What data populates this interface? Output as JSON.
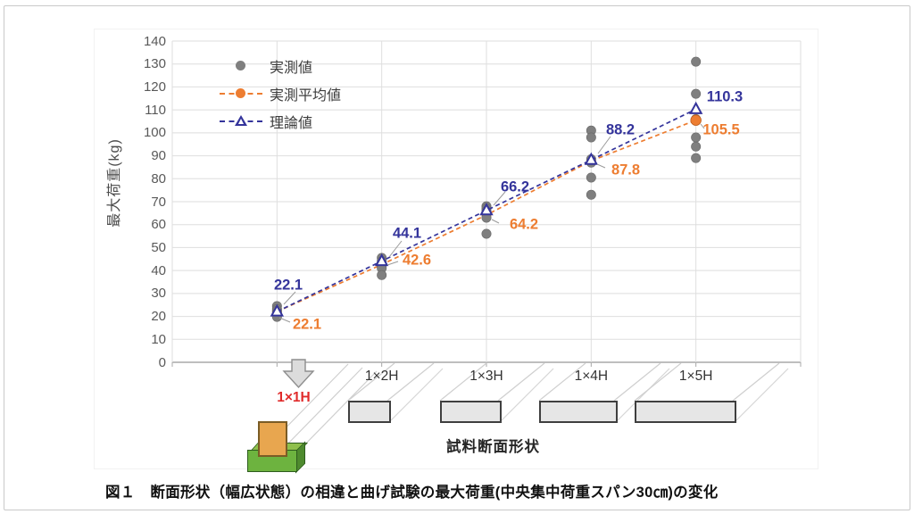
{
  "figure": {
    "caption": "図１　断面形状（幅広状態）の相違と曲げ試験の最大荷重(中央集中荷重スパン30㎝)の変化"
  },
  "chart_data": {
    "type": "scatter",
    "title": "",
    "categories": [
      "1×1H",
      "1×2H",
      "1×3H",
      "1×4H",
      "1×5H"
    ],
    "xlabel": "試料断面形状",
    "ylabel": "最大荷重(kg)",
    "ylim": [
      0,
      140
    ],
    "ytick_step": 10,
    "grid": true,
    "legend_position": "inside-top-left",
    "series": [
      {
        "name": "実測値",
        "type": "scatter",
        "marker": "filled-circle",
        "color": "#7f7f7f",
        "points_by_category": [
          [
            24.5,
            23.2,
            22.4,
            21.6,
            20.8,
            19.8
          ],
          [
            45.5,
            44.0,
            43.0,
            42.0,
            41.0,
            38.0
          ],
          [
            68.0,
            67.0,
            66.0,
            65.0,
            63.0,
            56.0
          ],
          [
            101.0,
            98.0,
            88.5,
            87.0,
            80.5,
            73.0
          ],
          [
            131.0,
            117.0,
            106.0,
            98.0,
            94.0,
            89.0
          ]
        ]
      },
      {
        "name": "実測平均値",
        "type": "dashed-line",
        "marker": "filled-circle",
        "color": "#ed7d31",
        "values": [
          22.1,
          42.6,
          64.2,
          87.8,
          105.5
        ],
        "labels": [
          "22.1",
          "42.6",
          "64.2",
          "87.8",
          "105.5"
        ]
      },
      {
        "name": "理論値",
        "type": "dashed-line",
        "marker": "open-triangle",
        "color": "#34349b",
        "values": [
          22.1,
          44.1,
          66.2,
          88.2,
          110.3
        ],
        "labels": [
          "22.1",
          "44.1",
          "66.2",
          "88.2",
          "110.3"
        ]
      }
    ],
    "category_highlight": {
      "label": "1×1H",
      "color": "#e02b2b"
    }
  }
}
